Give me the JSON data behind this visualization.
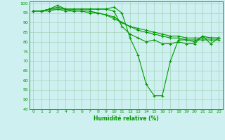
{
  "x": [
    0,
    1,
    2,
    3,
    4,
    5,
    6,
    7,
    8,
    9,
    10,
    11,
    12,
    13,
    14,
    15,
    16,
    17,
    18,
    19,
    20,
    21,
    22,
    23
  ],
  "line1": [
    96,
    96,
    97,
    98,
    97,
    97,
    97,
    97,
    97,
    97,
    98,
    95,
    82,
    73,
    58,
    52,
    52,
    70,
    81,
    81,
    80,
    83,
    79,
    82
  ],
  "line2": [
    96,
    96,
    97,
    99,
    97,
    97,
    97,
    97,
    97,
    97,
    96,
    88,
    84,
    82,
    80,
    81,
    79,
    79,
    80,
    79,
    79,
    83,
    82,
    82
  ],
  "line3": [
    96,
    96,
    97,
    97,
    97,
    96,
    96,
    96,
    95,
    94,
    93,
    90,
    88,
    87,
    86,
    85,
    84,
    83,
    83,
    82,
    82,
    82,
    82,
    82
  ],
  "line4": [
    96,
    96,
    96,
    97,
    96,
    96,
    96,
    95,
    95,
    94,
    92,
    90,
    88,
    86,
    85,
    84,
    83,
    82,
    82,
    81,
    81,
    81,
    81,
    81
  ],
  "xlabel": "Humidité relative (%)",
  "ylim": [
    45,
    101
  ],
  "yticks": [
    45,
    50,
    55,
    60,
    65,
    70,
    75,
    80,
    85,
    90,
    95,
    100
  ],
  "xlim": [
    -0.5,
    23.5
  ],
  "bg_color": "#cef0f0",
  "grid_color": "#99ccaa",
  "line_color": "#009900",
  "marker": "+"
}
